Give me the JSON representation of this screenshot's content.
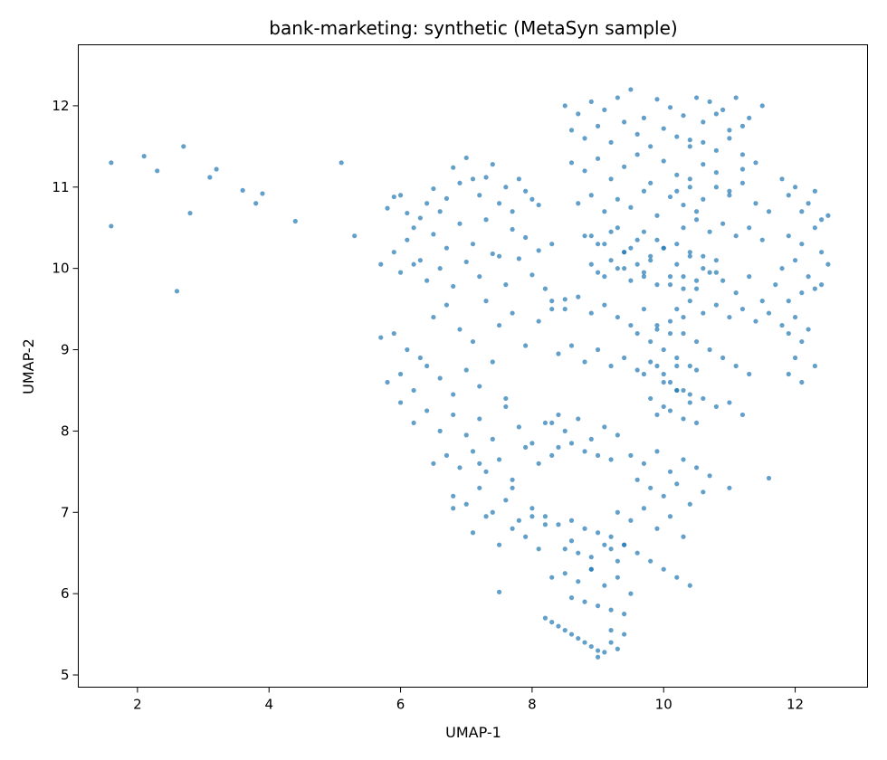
{
  "chart_data": {
    "type": "scatter",
    "title": "bank-marketing: synthetic (MetaSyn sample)",
    "xlabel": "UMAP-1",
    "ylabel": "UMAP-2",
    "xlim": [
      1.1,
      13.1
    ],
    "ylim": [
      4.85,
      12.75
    ],
    "xticks": [
      2,
      4,
      6,
      8,
      10,
      12
    ],
    "yticks": [
      5,
      6,
      7,
      8,
      9,
      10,
      11,
      12
    ],
    "grid": false,
    "legend": "none",
    "marker_color": "#1f77b4",
    "marker_alpha": 0.7,
    "series": [
      {
        "x": [
          1.6,
          1.6,
          2.1,
          2.3,
          2.7,
          2.8,
          3.1,
          3.2,
          3.6,
          3.8,
          3.9,
          4.4,
          5.1,
          5.3,
          2.6,
          5.7,
          5.8,
          5.9,
          6.0,
          6.1,
          6.2,
          6.3,
          6.4,
          6.5,
          6.6,
          6.7,
          6.8,
          6.9,
          7.0,
          7.1,
          7.2,
          7.3,
          7.4,
          7.5,
          7.6,
          7.7,
          7.8,
          7.9,
          8.0,
          8.1,
          5.9,
          6.1,
          6.3,
          6.5,
          6.7,
          6.9,
          7.1,
          7.3,
          7.5,
          7.7,
          7.9,
          8.1,
          8.3,
          6.0,
          6.2,
          6.4,
          6.6,
          6.8,
          7.0,
          7.2,
          7.4,
          7.6,
          7.8,
          8.0,
          8.2,
          5.7,
          5.9,
          6.1,
          6.3,
          6.5,
          6.7,
          6.9,
          7.1,
          7.3,
          7.5,
          7.7,
          7.9,
          8.1,
          8.3,
          8.5,
          5.8,
          6.0,
          6.2,
          6.4,
          6.6,
          6.8,
          7.0,
          7.2,
          7.4,
          7.6,
          6.0,
          6.2,
          6.4,
          6.6,
          6.8,
          7.0,
          7.2,
          7.4,
          7.6,
          7.8,
          8.0,
          8.2,
          8.4,
          6.5,
          6.7,
          6.9,
          7.1,
          7.3,
          7.5,
          7.7,
          7.9,
          8.1,
          8.3,
          6.8,
          7.0,
          7.2,
          7.4,
          7.6,
          7.8,
          8.0,
          8.2,
          7.1,
          7.3,
          7.5,
          7.7,
          7.9,
          8.1,
          8.5,
          8.7,
          8.9,
          9.1,
          9.3,
          9.5,
          9.7,
          9.9,
          10.1,
          10.3,
          8.6,
          8.8,
          9.0,
          9.2,
          9.4,
          9.6,
          9.8,
          10.0,
          10.2,
          10.4,
          8.6,
          8.8,
          9.0,
          9.2,
          9.4,
          9.6,
          9.8,
          10.0,
          10.2,
          10.4,
          10.6,
          10.8,
          11.0,
          11.2,
          8.7,
          8.9,
          9.1,
          9.3,
          9.5,
          9.7,
          9.9,
          10.1,
          10.3,
          10.5,
          8.9,
          9.1,
          9.3,
          9.5,
          9.7,
          9.9,
          9.2,
          9.4,
          9.6,
          9.8,
          9.0,
          9.4,
          9.7,
          10.5,
          10.7,
          10.9,
          11.1,
          11.3,
          11.5,
          10.6,
          10.8,
          11.0,
          11.2,
          10.4,
          10.6,
          10.8,
          11.0,
          11.2,
          11.4,
          10.2,
          10.4,
          10.6,
          10.8,
          11.0,
          11.2,
          11.4,
          11.6,
          10.3,
          10.5,
          10.7,
          10.9,
          11.1,
          11.3,
          11.5,
          10.0,
          10.2,
          10.4,
          10.6,
          10.8,
          10.1,
          10.3,
          10.5,
          10.7,
          10.9,
          11.1,
          11.3,
          11.5,
          11.7,
          10.2,
          10.4,
          10.6,
          10.8,
          11.0,
          11.2,
          11.4,
          11.6,
          11.8,
          11.9,
          12.0,
          12.1,
          12.2,
          12.3,
          12.4,
          12.5,
          11.9,
          12.1,
          12.3,
          12.4,
          11.8,
          12.0,
          12.2,
          12.4,
          12.5,
          11.9,
          12.1,
          12.3,
          11.8,
          11.9,
          12.0,
          12.1,
          12.2,
          12.0,
          12.3,
          11.9,
          12.1,
          8.3,
          8.5,
          8.7,
          8.9,
          9.1,
          9.3,
          8.4,
          8.6,
          8.8,
          9.0,
          9.2,
          8.2,
          8.4,
          8.6,
          8.8,
          9.0,
          9.2,
          9.4,
          8.5,
          8.7,
          8.9,
          9.1,
          9.3,
          8.3,
          8.5,
          8.7,
          8.9,
          9.1,
          9.3,
          9.5,
          8.6,
          8.8,
          9.0,
          9.2,
          9.4,
          8.2,
          8.3,
          8.4,
          8.5,
          8.6,
          8.7,
          8.8,
          8.9,
          9.0,
          9.1,
          9.2,
          9.3,
          9.4,
          9.0,
          9.2,
          9.6,
          9.8,
          10.0,
          10.2,
          10.4,
          9.7,
          9.9,
          10.1,
          10.3,
          10.5,
          9.8,
          10.0,
          10.2,
          10.4,
          9.9,
          10.1,
          10.3,
          10.5,
          9.5,
          9.7,
          9.9,
          10.1,
          10.3,
          10.5,
          10.7,
          9.6,
          9.8,
          10.0,
          10.2,
          10.4,
          10.6,
          9.9,
          10.1,
          10.3,
          10.5,
          10.7,
          10.9,
          11.1,
          11.3,
          10.0,
          10.2,
          10.4,
          10.6,
          10.8,
          11.0,
          11.2,
          8.3,
          8.5,
          8.7,
          8.9,
          9.1,
          9.3,
          9.5,
          9.7,
          9.9,
          10.1,
          10.3,
          8.4,
          8.6,
          8.8,
          9.0,
          9.2,
          9.4,
          9.6,
          9.8,
          10.0,
          10.2,
          8.8,
          9.0,
          9.2,
          9.4,
          9.6,
          9.8,
          10.0,
          10.2,
          10.4,
          10.6,
          10.8,
          8.9,
          9.1,
          9.3,
          9.5,
          9.7,
          9.9,
          10.1,
          10.3,
          10.5,
          9.3,
          9.5,
          9.7,
          9.9,
          10.1,
          10.3,
          9.4,
          9.6,
          9.8,
          10.0,
          10.2,
          10.4,
          7.5,
          8.6,
          8.9,
          9.2,
          11.0,
          11.6,
          6.8,
          7.2,
          7.7,
          8.0
        ],
        "y": [
          11.3,
          10.52,
          11.38,
          11.2,
          11.5,
          10.68,
          11.12,
          11.22,
          10.96,
          10.8,
          10.92,
          10.58,
          11.3,
          10.4,
          9.72,
          10.05,
          10.74,
          10.88,
          10.9,
          10.68,
          10.5,
          10.62,
          10.8,
          10.98,
          10.7,
          10.86,
          11.24,
          11.05,
          11.36,
          11.1,
          10.9,
          11.12,
          11.28,
          10.8,
          11.0,
          10.7,
          11.1,
          10.95,
          10.85,
          10.78,
          10.2,
          10.35,
          10.1,
          10.42,
          10.25,
          10.55,
          10.3,
          10.6,
          10.15,
          10.48,
          10.38,
          10.22,
          10.3,
          9.95,
          10.05,
          9.85,
          10.0,
          9.78,
          10.08,
          9.9,
          10.18,
          9.8,
          10.12,
          9.92,
          9.75,
          9.15,
          9.2,
          9.0,
          8.9,
          9.4,
          9.55,
          9.25,
          9.1,
          9.6,
          9.3,
          9.45,
          9.05,
          9.35,
          9.5,
          9.62,
          8.6,
          8.7,
          8.5,
          8.8,
          8.65,
          8.45,
          8.75,
          8.55,
          8.85,
          8.4,
          8.35,
          8.1,
          8.25,
          8.0,
          8.2,
          7.95,
          8.15,
          7.9,
          8.3,
          8.05,
          7.85,
          8.1,
          8.2,
          7.6,
          7.7,
          7.55,
          7.75,
          7.5,
          7.65,
          7.4,
          7.8,
          7.6,
          7.7,
          7.2,
          7.1,
          7.3,
          7.0,
          7.15,
          6.9,
          7.05,
          6.85,
          6.75,
          6.95,
          6.6,
          6.8,
          6.7,
          6.55,
          12.0,
          11.9,
          12.05,
          11.95,
          12.1,
          12.2,
          11.85,
          12.08,
          11.98,
          11.88,
          11.7,
          11.6,
          11.75,
          11.55,
          11.8,
          11.65,
          11.5,
          11.72,
          11.62,
          11.58,
          11.3,
          11.2,
          11.35,
          11.1,
          11.25,
          11.4,
          11.05,
          11.32,
          11.15,
          11.0,
          11.28,
          11.18,
          10.95,
          11.22,
          10.8,
          10.9,
          10.7,
          10.85,
          10.75,
          10.95,
          10.65,
          10.88,
          10.78,
          10.7,
          10.4,
          10.3,
          10.5,
          10.25,
          10.45,
          10.35,
          10.1,
          10.2,
          10.05,
          10.15,
          9.95,
          10.0,
          9.9,
          12.1,
          12.05,
          11.95,
          12.1,
          11.85,
          12.0,
          11.8,
          11.9,
          11.7,
          11.75,
          11.5,
          11.55,
          11.45,
          11.6,
          11.4,
          11.3,
          10.95,
          11.1,
          10.85,
          11.0,
          10.9,
          11.05,
          10.8,
          10.7,
          10.5,
          10.6,
          10.45,
          10.55,
          10.4,
          10.5,
          10.35,
          10.25,
          10.3,
          10.2,
          10.15,
          10.1,
          9.8,
          9.9,
          9.75,
          9.95,
          9.85,
          9.7,
          9.9,
          9.6,
          9.8,
          9.5,
          9.6,
          9.45,
          9.55,
          9.4,
          9.5,
          9.35,
          9.45,
          11.1,
          10.9,
          11.0,
          10.7,
          10.8,
          10.95,
          10.6,
          10.65,
          10.4,
          10.3,
          10.5,
          10.2,
          10.0,
          10.1,
          9.9,
          9.8,
          10.05,
          9.6,
          9.7,
          9.75,
          9.3,
          9.2,
          9.4,
          9.1,
          9.25,
          8.9,
          8.8,
          8.7,
          8.6,
          8.1,
          8.0,
          8.15,
          7.9,
          8.05,
          7.95,
          7.8,
          7.85,
          7.75,
          7.7,
          7.65,
          6.95,
          6.85,
          6.9,
          6.8,
          6.75,
          6.7,
          6.6,
          6.55,
          6.5,
          6.45,
          6.6,
          6.4,
          6.2,
          6.25,
          6.15,
          6.3,
          6.1,
          6.2,
          6.0,
          5.95,
          5.9,
          5.85,
          5.8,
          5.75,
          5.7,
          5.65,
          5.6,
          5.55,
          5.5,
          5.45,
          5.4,
          5.35,
          5.3,
          5.28,
          5.4,
          5.32,
          5.5,
          5.22,
          5.55,
          9.2,
          9.1,
          9.0,
          8.9,
          8.8,
          8.7,
          8.8,
          8.6,
          8.5,
          8.75,
          8.4,
          8.3,
          8.5,
          8.35,
          8.2,
          8.25,
          8.15,
          8.1,
          7.7,
          7.6,
          7.75,
          7.5,
          7.65,
          7.55,
          7.45,
          7.4,
          7.3,
          7.2,
          7.35,
          7.1,
          7.25,
          9.3,
          9.2,
          9.4,
          9.1,
          9.0,
          8.9,
          8.8,
          8.7,
          8.6,
          8.5,
          8.45,
          8.4,
          8.3,
          8.35,
          8.2,
          9.6,
          9.5,
          9.65,
          9.45,
          9.55,
          9.4,
          9.3,
          9.5,
          9.25,
          9.35,
          9.2,
          8.95,
          9.05,
          8.85,
          9.0,
          8.8,
          8.9,
          8.75,
          8.85,
          8.7,
          8.8,
          10.4,
          10.3,
          10.45,
          10.2,
          10.35,
          10.1,
          10.25,
          10.05,
          10.15,
          10.0,
          9.95,
          10.05,
          9.9,
          10.0,
          9.85,
          9.95,
          9.8,
          9.9,
          9.75,
          9.85,
          7.0,
          6.9,
          7.05,
          6.8,
          6.95,
          6.7,
          6.6,
          6.5,
          6.4,
          6.3,
          6.2,
          6.1,
          6.02,
          6.65,
          6.3,
          6.55,
          7.3,
          7.42,
          7.05,
          7.6,
          7.3,
          6.95
        ]
      }
    ]
  }
}
